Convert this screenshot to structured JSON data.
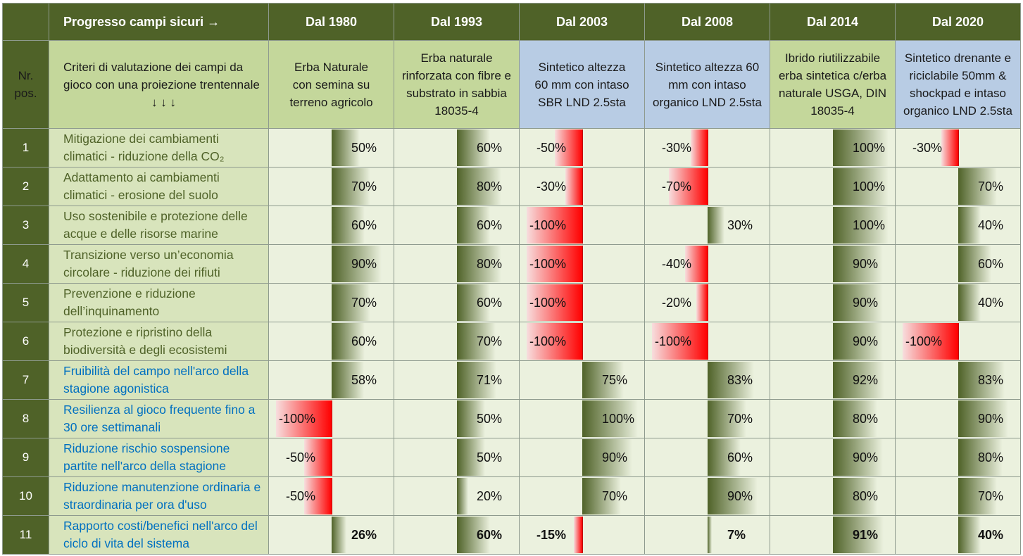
{
  "header": {
    "progress_label": "Progresso campi sicuri →",
    "years": [
      "Dal 1980",
      "Dal 1993",
      "Dal 2003",
      "Dal 2008",
      "Dal 2014",
      "Dal 2020"
    ]
  },
  "subheader": {
    "nr_label": "Nr. pos.",
    "criteria_label": "Criteri di valutazione dei campi da gioco con una proiezione trentennale",
    "arrows": "↓ ↓ ↓",
    "systems": [
      "Erba Naturale con semina su terreno agricolo",
      "Erba naturale rinforzata con fibre e substrato in sabbia 18035-4",
      "Sintetico altezza 60 mm con intaso SBR LND 2.5sta",
      "Sintetico altezza 60 mm con intaso organico LND 2.5sta",
      "Ibrido riutilizzabile erba sintetica c/erba naturale USGA, DIN 18035-4",
      "Sintetico drenante e riciclabile 50mm & shockpad e intaso organico LND 2.5sta"
    ]
  },
  "colors": {
    "header_bg": "#4f6228",
    "green_header": "#c4d79b",
    "blue_header": "#b8cce4",
    "cell_bg": "#ebf1de",
    "positive_bar": "#4f6228",
    "negative_bar": "#ff0000",
    "criteria_olive": "#4f6228",
    "criteria_blue": "#0070c0"
  },
  "chart_data": {
    "type": "table",
    "unit": "%",
    "rows": [
      {
        "nr": "1",
        "criterion": "Mitigazione dei cambiamenti climatici - riduzione della CO₂",
        "style": "olive",
        "values": [
          50,
          60,
          -50,
          -30,
          100,
          -30
        ]
      },
      {
        "nr": "2",
        "criterion": "Adattamento ai cambiamenti climatici - erosione del suolo",
        "style": "olive",
        "values": [
          70,
          80,
          -30,
          -70,
          100,
          70
        ]
      },
      {
        "nr": "3",
        "criterion": "Uso sostenibile e protezione delle acque e delle risorse marine",
        "style": "olive",
        "values": [
          60,
          60,
          -100,
          30,
          100,
          40
        ]
      },
      {
        "nr": "4",
        "criterion": "Transizione verso un’economia circolare - riduzione dei rifiuti",
        "style": "olive",
        "values": [
          90,
          80,
          -100,
          -40,
          90,
          60
        ]
      },
      {
        "nr": "5",
        "criterion": "Prevenzione e riduzione dell’inquinamento",
        "style": "olive",
        "values": [
          70,
          60,
          -100,
          -20,
          90,
          40
        ]
      },
      {
        "nr": "6",
        "criterion": "Protezione e ripristino della biodiversità e degli ecosistemi",
        "style": "olive",
        "values": [
          60,
          70,
          -100,
          -100,
          90,
          -100
        ]
      },
      {
        "nr": "7",
        "criterion": "Fruibilità del campo nell'arco della stagione agonistica",
        "style": "blue",
        "values": [
          58,
          71,
          75,
          83,
          92,
          83
        ]
      },
      {
        "nr": "8",
        "criterion": "Resilienza al gioco frequente fino a 30 ore settimanali",
        "style": "blue",
        "values": [
          -100,
          50,
          100,
          70,
          80,
          90
        ]
      },
      {
        "nr": "9",
        "criterion": "Riduzione rischio sospensione partite nell'arco della stagione",
        "style": "blue",
        "values": [
          -50,
          50,
          90,
          60,
          90,
          80
        ]
      },
      {
        "nr": "10",
        "criterion": "Riduzione manutenzione ordinaria e straordinaria per ora d'uso",
        "style": "blue",
        "values": [
          -50,
          20,
          70,
          90,
          80,
          70
        ]
      },
      {
        "nr": "11",
        "criterion": "Rapporto costi/benefici nell'arco del ciclo di vita del sistema",
        "style": "blue",
        "bold": true,
        "values": [
          26,
          60,
          -15,
          7,
          91,
          40
        ]
      }
    ]
  }
}
